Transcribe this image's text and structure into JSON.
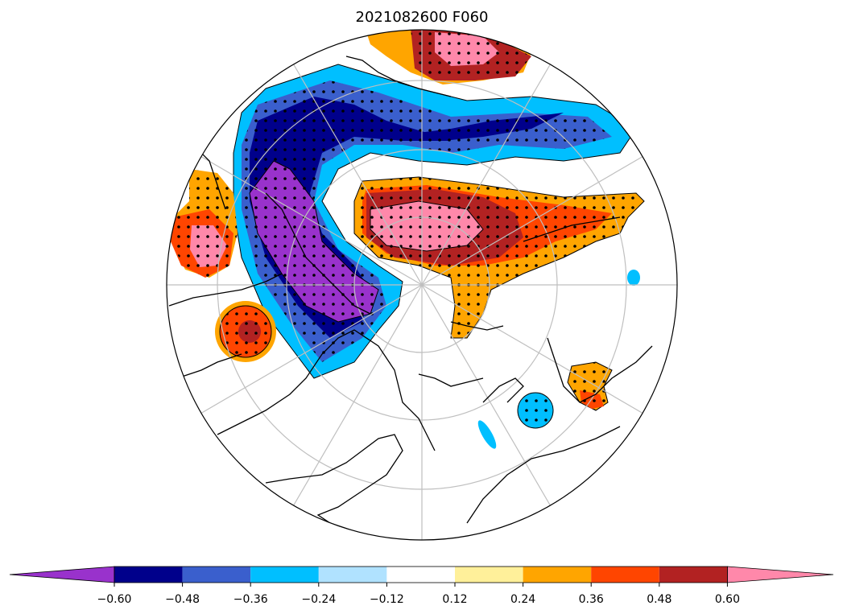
{
  "title": "2021082600 F060",
  "colorbar": {
    "ticks": [
      "−0.60",
      "−0.48",
      "−0.36",
      "−0.24",
      "−0.12",
      "0.12",
      "0.24",
      "0.36",
      "0.48",
      "0.60"
    ],
    "colors": [
      "#9932cc",
      "#00008b",
      "#3a5fcd",
      "#00bfff",
      "#b0e2ff",
      "#ffffff",
      "#fff09a",
      "#ffa500",
      "#ff4500",
      "#b22222",
      "#ff88aa"
    ]
  },
  "map": {
    "projection": "north-polar-stereographic",
    "graticule": "on",
    "stippling": "significance dots"
  }
}
